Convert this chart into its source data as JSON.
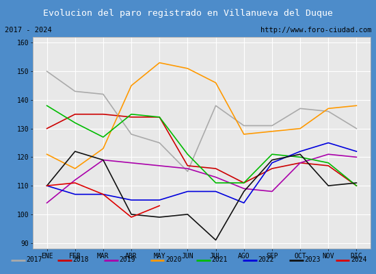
{
  "title": "Evolucion del paro registrado en Villanueva del Duque",
  "subtitle_left": "2017 - 2024",
  "subtitle_right": "http://www.foro-ciudad.com",
  "months": [
    "ENE",
    "FEB",
    "MAR",
    "ABR",
    "MAY",
    "JUN",
    "JUL",
    "AGO",
    "SEP",
    "OCT",
    "NOV",
    "DIC"
  ],
  "ylim": [
    88,
    162
  ],
  "yticks": [
    90,
    100,
    110,
    120,
    130,
    140,
    150,
    160
  ],
  "series": {
    "2017": {
      "color": "#aaaaaa",
      "values": [
        150,
        143,
        142,
        128,
        125,
        115,
        138,
        131,
        131,
        137,
        136,
        130
      ]
    },
    "2018": {
      "color": "#cc0000",
      "values": [
        130,
        135,
        135,
        134,
        134,
        117,
        116,
        111,
        116,
        118,
        117,
        110
      ]
    },
    "2019": {
      "color": "#aa00aa",
      "values": [
        104,
        112,
        119,
        118,
        117,
        116,
        113,
        109,
        108,
        118,
        121,
        120
      ]
    },
    "2020": {
      "color": "#ff9900",
      "values": [
        121,
        116,
        123,
        145,
        153,
        151,
        146,
        128,
        129,
        130,
        137,
        138
      ]
    },
    "2021": {
      "color": "#00bb00",
      "values": [
        138,
        132,
        127,
        135,
        134,
        121,
        111,
        111,
        121,
        120,
        118,
        110
      ]
    },
    "2022": {
      "color": "#0000dd",
      "values": [
        110,
        107,
        107,
        105,
        105,
        108,
        108,
        104,
        118,
        122,
        125,
        122
      ]
    },
    "2023": {
      "color": "#111111",
      "values": [
        110,
        122,
        119,
        100,
        99,
        100,
        91,
        108,
        119,
        121,
        110,
        111
      ]
    },
    "2024": {
      "color": "#dd0000",
      "values": [
        110,
        111,
        107,
        99,
        103,
        null,
        null,
        null,
        null,
        null,
        null,
        null
      ]
    }
  },
  "title_bgcolor": "#4d8cca",
  "title_color": "white",
  "subtitle_bgcolor": "#ffffff",
  "plot_bgcolor": "#e8e8e8",
  "border_color": "#4d8cca",
  "legend_bgcolor": "#ffffff",
  "fig_width": 5.5,
  "fig_height": 4.0,
  "fig_dpi": 100
}
